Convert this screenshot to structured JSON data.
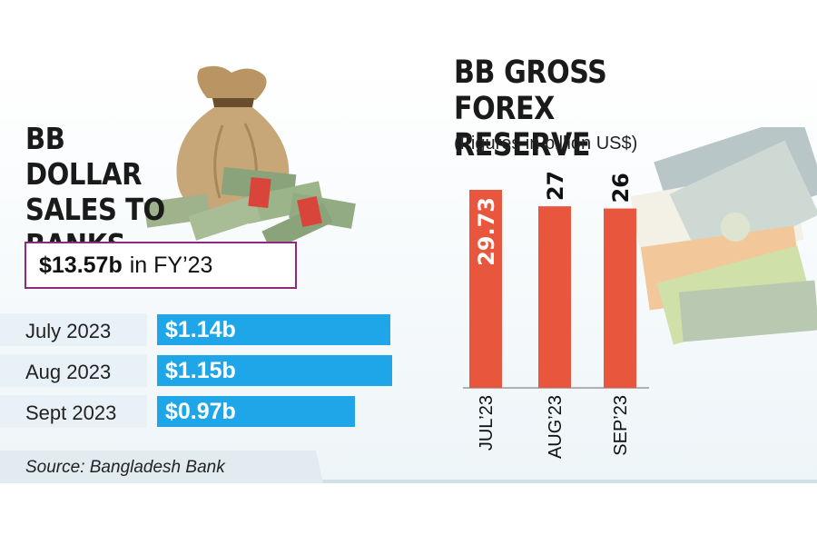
{
  "left": {
    "title": "BB DOLLAR SALES TO BANKS",
    "total_value": "$13.57b",
    "total_suffix": "in FY’23",
    "rows": [
      {
        "label": "July 2023",
        "value_label": "$1.14b",
        "value": 1.14
      },
      {
        "label": "Aug 2023",
        "value_label": "$1.15b",
        "value": 1.15
      },
      {
        "label": "Sept 2023",
        "value_label": "$0.97b",
        "value": 0.97
      }
    ]
  },
  "right": {
    "title": "BB GROSS FOREX RESERVE",
    "subtitle": "(Figures in billion US$)"
  },
  "source": "Source: Bangladesh Bank",
  "colors": {
    "hbar": "#1ea6e8",
    "vbar": "#e8563e",
    "box_border": "#8d2a7e"
  },
  "chart_data": [
    {
      "type": "bar",
      "orientation": "horizontal",
      "title": "BB DOLLAR SALES TO BANKS",
      "categories": [
        "July 2023",
        "Aug 2023",
        "Sept 2023"
      ],
      "values": [
        1.14,
        1.15,
        0.97
      ],
      "data_labels": [
        "$1.14b",
        "$1.15b",
        "$0.97b"
      ]
    },
    {
      "type": "bar",
      "orientation": "vertical",
      "title": "BB GROSS FOREX RESERVE",
      "subtitle": "(Figures in billion US$)",
      "categories": [
        "JUL’23",
        "AUG’23",
        "SEP’23"
      ],
      "values": [
        29.73,
        27.26,
        26.93
      ],
      "data_labels": [
        "29.73",
        "27.26",
        "26.93"
      ]
    }
  ]
}
